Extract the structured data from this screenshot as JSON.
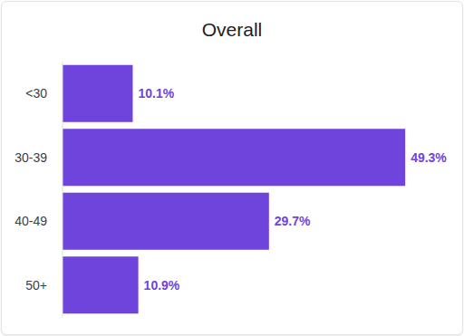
{
  "chart_data": {
    "type": "bar",
    "title": "Overall",
    "orientation": "horizontal",
    "categories": [
      "<30",
      "30-39",
      "40-49",
      "50+"
    ],
    "values": [
      10.1,
      49.3,
      29.7,
      10.9
    ],
    "value_labels": [
      "10.1%",
      "49.3%",
      "29.7%",
      "10.9%"
    ],
    "color": "#6e44dc",
    "xlim": [
      0,
      50
    ],
    "data_labels": true,
    "tick_labels": "y",
    "grid": false
  }
}
